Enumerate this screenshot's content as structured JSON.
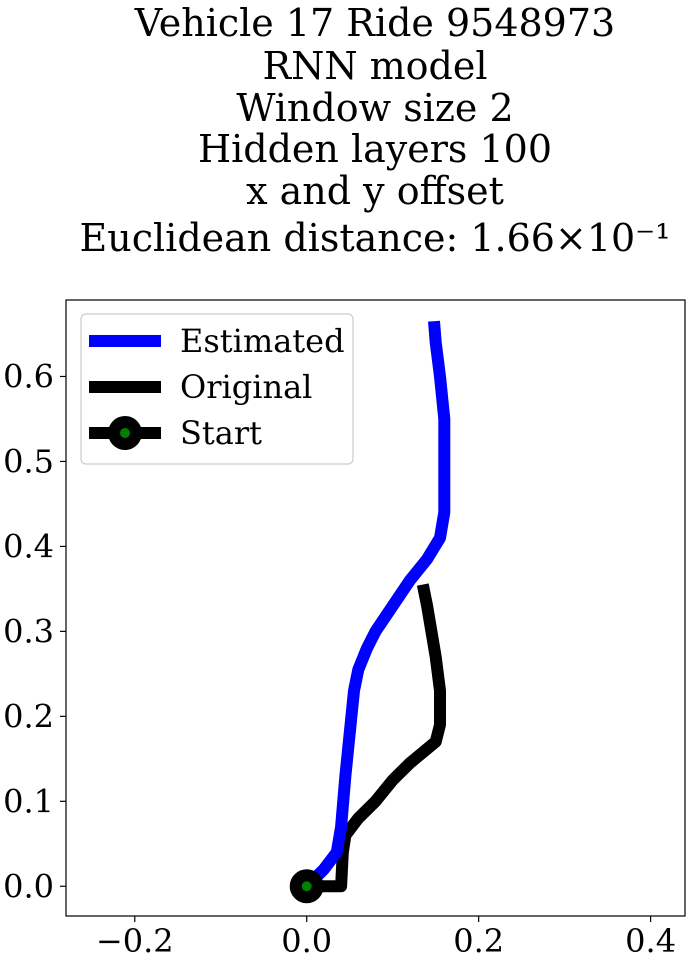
{
  "chart_data": {
    "type": "line",
    "title_lines": [
      "Vehicle 17 Ride 9548973",
      "RNN model",
      "Window size 2",
      "Hidden layers 100",
      "x and y offset",
      "Euclidean distance: 1.66×10⁻¹"
    ],
    "xlim": [
      -0.28,
      0.44
    ],
    "ylim": [
      -0.035,
      0.69
    ],
    "xticks": [
      -0.2,
      0.0,
      0.2,
      0.4
    ],
    "xtick_labels": [
      "−0.2",
      "0.0",
      "0.2",
      "0.4"
    ],
    "yticks": [
      0.0,
      0.1,
      0.2,
      0.3,
      0.4,
      0.5,
      0.6
    ],
    "ytick_labels": [
      "0.0",
      "0.1",
      "0.2",
      "0.3",
      "0.4",
      "0.5",
      "0.6"
    ],
    "grid": false,
    "legend_position": "top-left",
    "series": [
      {
        "name": "Estimated",
        "color": "#0000ff",
        "x": [
          0.0,
          0.02,
          0.035,
          0.04,
          0.045,
          0.05,
          0.055,
          0.06,
          0.07,
          0.08,
          0.1,
          0.12,
          0.14,
          0.155,
          0.16,
          0.16,
          0.16,
          0.155,
          0.15,
          0.148
        ],
        "y": [
          0.0,
          0.02,
          0.04,
          0.07,
          0.13,
          0.18,
          0.23,
          0.255,
          0.28,
          0.3,
          0.33,
          0.36,
          0.385,
          0.41,
          0.44,
          0.5,
          0.55,
          0.6,
          0.64,
          0.665
        ]
      },
      {
        "name": "Original",
        "color": "#000000",
        "x": [
          0.0,
          0.04,
          0.042,
          0.045,
          0.06,
          0.08,
          0.1,
          0.12,
          0.15,
          0.155,
          0.155,
          0.15,
          0.145,
          0.14,
          0.135
        ],
        "y": [
          0.0,
          0.0,
          0.04,
          0.06,
          0.08,
          0.1,
          0.125,
          0.145,
          0.17,
          0.19,
          0.23,
          0.27,
          0.3,
          0.33,
          0.355
        ]
      }
    ],
    "start": {
      "name": "Start",
      "x": 0.0,
      "y": 0.0,
      "outer_color": "#000000",
      "inner_color": "#008000"
    }
  }
}
